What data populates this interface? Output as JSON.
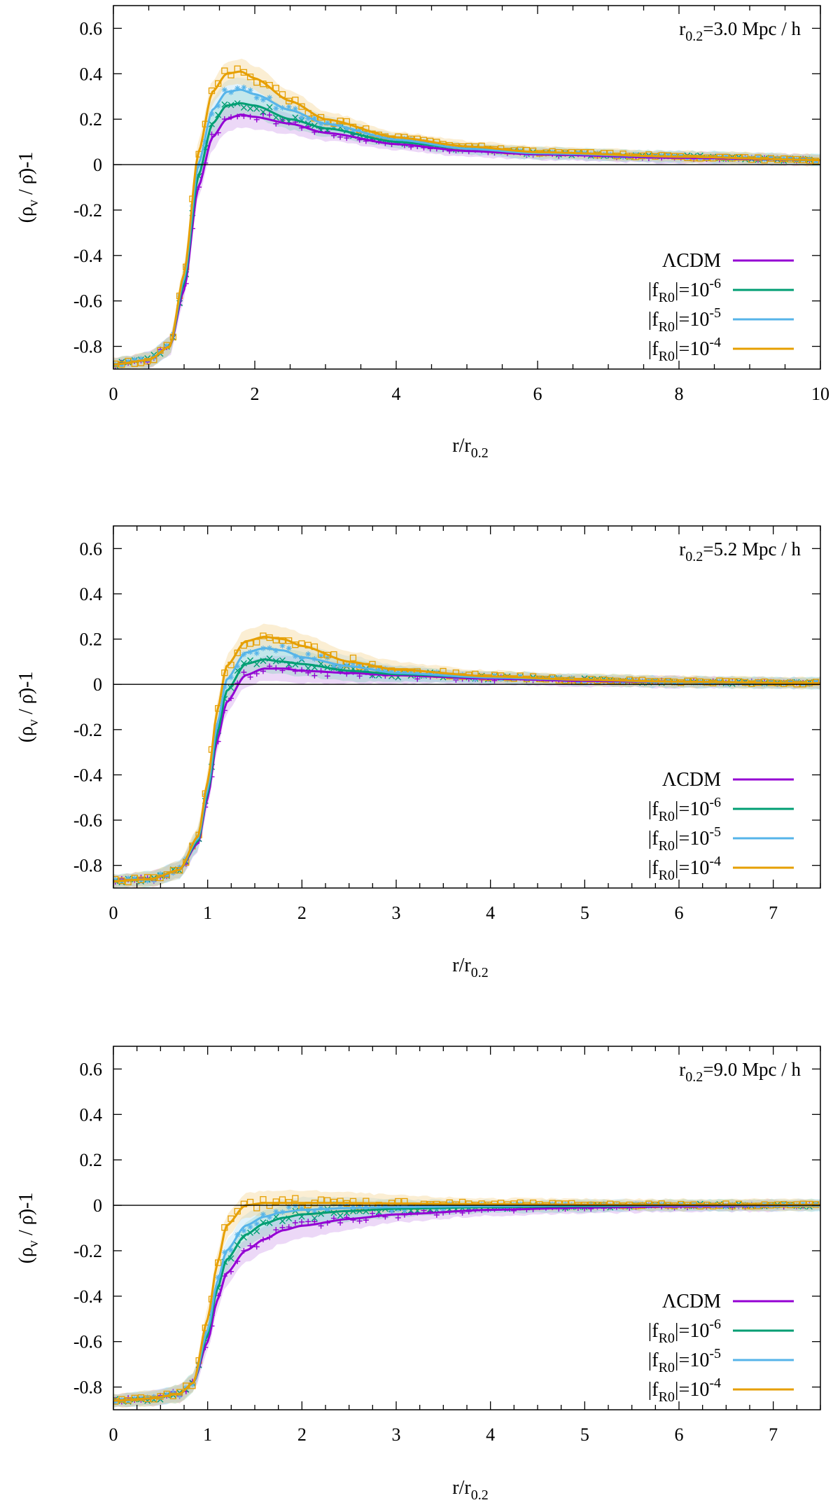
{
  "figure": {
    "ylabel": "(ρ",
    "ylabel_sub": "v",
    "ylabel_rest": " / ρ̄)-1",
    "xlabel_main": "r/r",
    "xlabel_sub": "0.2"
  },
  "series_style": [
    {
      "key": "lcdm",
      "color": "#9400D3",
      "band": "#C890E8",
      "marker": "plus"
    },
    {
      "key": "f6",
      "color": "#009E73",
      "band": "#7FCFB8",
      "marker": "x"
    },
    {
      "key": "f5",
      "color": "#56B4E9",
      "band": "#A9D9F4",
      "marker": "star"
    },
    {
      "key": "f4",
      "color": "#E69F00",
      "band": "#F3CF80",
      "marker": "square"
    }
  ],
  "legend": [
    {
      "pre": "ΛCDM",
      "sub": "",
      "mid": "",
      "sup": ""
    },
    {
      "pre": "|f",
      "sub": "R0",
      "mid": "|=10",
      "sup": "-6"
    },
    {
      "pre": "|f",
      "sub": "R0",
      "mid": "|=10",
      "sup": "-5"
    },
    {
      "pre": "|f",
      "sub": "R0",
      "mid": "|=10",
      "sup": "-4"
    }
  ],
  "chart_data": [
    {
      "type": "line",
      "annotation": {
        "pre": "r",
        "sub": "0.2",
        "post": "=3.0 Mpc / h"
      },
      "xlim": [
        0,
        10
      ],
      "ylim": [
        -0.9,
        0.7
      ],
      "xticks": [
        0,
        2,
        4,
        6,
        8,
        10
      ],
      "yticks": [
        -0.8,
        -0.6,
        -0.4,
        -0.2,
        0,
        0.2,
        0.4,
        0.6
      ],
      "ytick_labels": [
        "-0.8",
        "-0.6",
        "-0.4",
        "-0.2",
        "0",
        "0.2",
        "0.4",
        "0.6"
      ],
      "xtick_labels": [
        "0",
        "2",
        "4",
        "6",
        "8",
        "10"
      ],
      "x_minor_step": 0.5,
      "series": [
        {
          "name": "ΛCDM",
          "x": [
            0,
            0.5,
            0.8,
            1.0,
            1.2,
            1.4,
            1.6,
            1.8,
            2.0,
            2.5,
            3.0,
            4.0,
            5.0,
            6.0,
            8.0,
            10.0
          ],
          "y": [
            -0.88,
            -0.86,
            -0.8,
            -0.55,
            -0.1,
            0.12,
            0.2,
            0.22,
            0.21,
            0.18,
            0.14,
            0.09,
            0.06,
            0.045,
            0.03,
            0.02
          ]
        },
        {
          "name": "|fR0|=10^-6",
          "x": [
            0,
            0.5,
            0.8,
            1.0,
            1.2,
            1.4,
            1.6,
            1.8,
            2.0,
            2.5,
            3.0,
            4.0,
            5.0,
            6.0,
            8.0,
            10.0
          ],
          "y": [
            -0.88,
            -0.86,
            -0.8,
            -0.52,
            -0.05,
            0.18,
            0.26,
            0.27,
            0.26,
            0.2,
            0.16,
            0.1,
            0.07,
            0.05,
            0.035,
            0.02
          ]
        },
        {
          "name": "|fR0|=10^-5",
          "x": [
            0,
            0.5,
            0.8,
            1.0,
            1.2,
            1.4,
            1.6,
            1.8,
            2.0,
            2.5,
            3.0,
            4.0,
            5.0,
            6.0,
            8.0,
            10.0
          ],
          "y": [
            -0.88,
            -0.86,
            -0.8,
            -0.5,
            0.0,
            0.24,
            0.32,
            0.33,
            0.31,
            0.24,
            0.18,
            0.11,
            0.07,
            0.05,
            0.035,
            0.02
          ]
        },
        {
          "name": "|fR0|=10^-4",
          "x": [
            0,
            0.5,
            0.8,
            1.0,
            1.2,
            1.4,
            1.6,
            1.8,
            2.0,
            2.5,
            3.0,
            4.0,
            5.0,
            6.0,
            8.0,
            10.0
          ],
          "y": [
            -0.88,
            -0.86,
            -0.8,
            -0.48,
            0.05,
            0.32,
            0.4,
            0.41,
            0.38,
            0.28,
            0.2,
            0.12,
            0.08,
            0.055,
            0.035,
            0.02
          ]
        }
      ]
    },
    {
      "type": "line",
      "annotation": {
        "pre": "r",
        "sub": "0.2",
        "post": "=5.2 Mpc / h"
      },
      "xlim": [
        0,
        7.5
      ],
      "ylim": [
        -0.9,
        0.7
      ],
      "xticks": [
        0,
        1,
        2,
        3,
        4,
        5,
        6,
        7
      ],
      "yticks": [
        -0.8,
        -0.6,
        -0.4,
        -0.2,
        0,
        0.2,
        0.4,
        0.6
      ],
      "ytick_labels": [
        "-0.8",
        "-0.6",
        "-0.4",
        "-0.2",
        "0",
        "0.2",
        "0.4",
        "0.6"
      ],
      "xtick_labels": [
        "0",
        "1",
        "2",
        "3",
        "4",
        "5",
        "6",
        "7"
      ],
      "x_minor_step": 0.25,
      "series": [
        {
          "name": "ΛCDM",
          "x": [
            0,
            0.4,
            0.7,
            0.9,
            1.0,
            1.1,
            1.2,
            1.4,
            1.6,
            1.8,
            2.0,
            2.5,
            3.0,
            4.0,
            5.0,
            6.0,
            7.5
          ],
          "y": [
            -0.87,
            -0.86,
            -0.82,
            -0.7,
            -0.5,
            -0.25,
            -0.08,
            0.04,
            0.07,
            0.07,
            0.06,
            0.05,
            0.04,
            0.025,
            0.015,
            0.01,
            0.005
          ]
        },
        {
          "name": "|fR0|=10^-6",
          "x": [
            0,
            0.4,
            0.7,
            0.9,
            1.0,
            1.1,
            1.2,
            1.4,
            1.6,
            1.8,
            2.0,
            2.5,
            3.0,
            4.0,
            5.0,
            6.0,
            7.5
          ],
          "y": [
            -0.87,
            -0.86,
            -0.82,
            -0.69,
            -0.48,
            -0.22,
            -0.03,
            0.09,
            0.11,
            0.1,
            0.09,
            0.06,
            0.045,
            0.03,
            0.02,
            0.01,
            0.005
          ]
        },
        {
          "name": "|fR0|=10^-5",
          "x": [
            0,
            0.4,
            0.7,
            0.9,
            1.0,
            1.1,
            1.2,
            1.4,
            1.6,
            1.8,
            2.0,
            2.5,
            3.0,
            4.0,
            5.0,
            6.0,
            7.5
          ],
          "y": [
            -0.87,
            -0.86,
            -0.82,
            -0.68,
            -0.46,
            -0.18,
            0.02,
            0.14,
            0.16,
            0.15,
            0.12,
            0.08,
            0.05,
            0.03,
            0.02,
            0.01,
            0.005
          ]
        },
        {
          "name": "|fR0|=10^-4",
          "x": [
            0,
            0.4,
            0.7,
            0.9,
            1.0,
            1.1,
            1.2,
            1.4,
            1.6,
            1.8,
            2.0,
            2.5,
            3.0,
            4.0,
            5.0,
            6.0,
            7.5
          ],
          "y": [
            -0.87,
            -0.86,
            -0.82,
            -0.67,
            -0.43,
            -0.12,
            0.08,
            0.19,
            0.21,
            0.2,
            0.17,
            0.1,
            0.065,
            0.035,
            0.02,
            0.012,
            0.005
          ]
        }
      ]
    },
    {
      "type": "line",
      "annotation": {
        "pre": "r",
        "sub": "0.2",
        "post": "=9.0 Mpc / h"
      },
      "xlim": [
        0,
        7.5
      ],
      "ylim": [
        -0.9,
        0.7
      ],
      "xticks": [
        0,
        1,
        2,
        3,
        4,
        5,
        6,
        7
      ],
      "yticks": [
        -0.8,
        -0.6,
        -0.4,
        -0.2,
        0,
        0.2,
        0.4,
        0.6
      ],
      "ytick_labels": [
        "-0.8",
        "-0.6",
        "-0.4",
        "-0.2",
        "0",
        "0.2",
        "0.4",
        "0.6"
      ],
      "xtick_labels": [
        "0",
        "1",
        "2",
        "3",
        "4",
        "5",
        "6",
        "7"
      ],
      "x_minor_step": 0.25,
      "series": [
        {
          "name": "ΛCDM",
          "x": [
            0,
            0.4,
            0.7,
            0.85,
            1.0,
            1.1,
            1.2,
            1.4,
            1.6,
            1.8,
            2.0,
            2.5,
            3.0,
            4.0,
            5.0,
            6.0,
            7.5
          ],
          "y": [
            -0.86,
            -0.85,
            -0.83,
            -0.78,
            -0.6,
            -0.42,
            -0.3,
            -0.2,
            -0.15,
            -0.11,
            -0.09,
            -0.06,
            -0.04,
            -0.02,
            -0.01,
            -0.005,
            0.0
          ]
        },
        {
          "name": "|fR0|=10^-6",
          "x": [
            0,
            0.4,
            0.7,
            0.85,
            1.0,
            1.1,
            1.2,
            1.4,
            1.6,
            1.8,
            2.0,
            2.5,
            3.0,
            4.0,
            5.0,
            6.0,
            7.5
          ],
          "y": [
            -0.86,
            -0.85,
            -0.83,
            -0.78,
            -0.57,
            -0.37,
            -0.24,
            -0.13,
            -0.08,
            -0.055,
            -0.04,
            -0.025,
            -0.015,
            -0.008,
            -0.004,
            0.0,
            0.0
          ]
        },
        {
          "name": "|fR0|=10^-5",
          "x": [
            0,
            0.4,
            0.7,
            0.85,
            1.0,
            1.1,
            1.2,
            1.4,
            1.6,
            1.8,
            2.0,
            2.5,
            3.0,
            4.0,
            5.0,
            6.0,
            7.5
          ],
          "y": [
            -0.86,
            -0.85,
            -0.83,
            -0.78,
            -0.55,
            -0.34,
            -0.2,
            -0.09,
            -0.05,
            -0.03,
            -0.02,
            -0.012,
            -0.008,
            -0.004,
            0.0,
            0.0,
            0.0
          ]
        },
        {
          "name": "|fR0|=10^-4",
          "x": [
            0,
            0.4,
            0.7,
            0.85,
            1.0,
            1.1,
            1.2,
            1.4,
            1.6,
            1.8,
            2.0,
            2.5,
            3.0,
            4.0,
            5.0,
            6.0,
            7.5
          ],
          "y": [
            -0.86,
            -0.85,
            -0.83,
            -0.78,
            -0.5,
            -0.26,
            -0.09,
            0.0,
            0.01,
            0.01,
            0.01,
            0.01,
            0.008,
            0.005,
            0.003,
            0.002,
            0.002
          ]
        }
      ]
    }
  ]
}
